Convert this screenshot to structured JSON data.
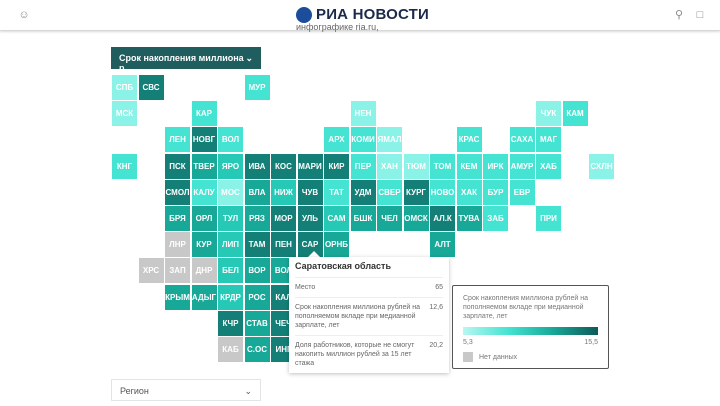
{
  "header": {
    "logo": "РИА НОВОСТИ",
    "subtext": "инфографике ria.ru,"
  },
  "selector": {
    "label": "Срок накопления миллиона р..."
  },
  "tiles": [
    {
      "label": "СПБ",
      "level": 0
    },
    {
      "label": "СВС",
      "level": 4
    },
    {
      "label": "МУР",
      "level": 1
    },
    {
      "label": "МСК",
      "level": 0
    },
    {
      "label": "КАР",
      "level": 1
    },
    {
      "label": "НЕН",
      "level": 0
    },
    {
      "label": "ЧУК",
      "level": 0
    },
    {
      "label": "КАМ",
      "level": 1
    },
    {
      "label": "ЛЕН",
      "level": 1
    },
    {
      "label": "НОВГ",
      "level": 4
    },
    {
      "label": "ВОЛ",
      "level": 1
    },
    {
      "label": "АРХ",
      "level": 1
    },
    {
      "label": "КОМИ",
      "level": 1
    },
    {
      "label": "ЯМАЛ",
      "level": 0
    },
    {
      "label": "КРАС",
      "level": 1
    },
    {
      "label": "САХА",
      "level": 1
    },
    {
      "label": "МАГ",
      "level": 1
    },
    {
      "label": "КНГ",
      "level": 1
    },
    {
      "label": "ПСК",
      "level": 4
    },
    {
      "label": "ТВЕР",
      "level": 3
    },
    {
      "label": "ЯРО",
      "level": 2
    },
    {
      "label": "ИВА",
      "level": 4
    },
    {
      "label": "КОС",
      "level": 4
    },
    {
      "label": "МАРИ",
      "level": 4
    },
    {
      "label": "КИР",
      "level": 4
    },
    {
      "label": "ПЕР",
      "level": 1
    },
    {
      "label": "ХАН",
      "level": 0
    },
    {
      "label": "ТЮМ",
      "level": 0
    },
    {
      "label": "ТОМ",
      "level": 1
    },
    {
      "label": "КЕМ",
      "level": 1
    },
    {
      "label": "ИРК",
      "level": 1
    },
    {
      "label": "АМУР",
      "level": 1
    },
    {
      "label": "ХАБ",
      "level": 1
    },
    {
      "label": "СХЛН",
      "level": 0
    },
    {
      "label": "СМОЛ",
      "level": 4
    },
    {
      "label": "КАЛУ",
      "level": 1
    },
    {
      "label": "МОС",
      "level": 0
    },
    {
      "label": "ВЛА",
      "level": 3
    },
    {
      "label": "НИЖ",
      "level": 2
    },
    {
      "label": "ЧУВ",
      "level": 4
    },
    {
      "label": "ТАТ",
      "level": 1
    },
    {
      "label": "УДМ",
      "level": 4
    },
    {
      "label": "СВЕР",
      "level": 1
    },
    {
      "label": "КУРГ",
      "level": 4
    },
    {
      "label": "НОВО",
      "level": 1
    },
    {
      "label": "ХАК",
      "level": 1
    },
    {
      "label": "БУР",
      "level": 1
    },
    {
      "label": "ЕВР",
      "level": 1
    },
    {
      "label": "БРЯ",
      "level": 3
    },
    {
      "label": "ОРЛ",
      "level": 3
    },
    {
      "label": "ТУЛ",
      "level": 2
    },
    {
      "label": "РЯЗ",
      "level": 3
    },
    {
      "label": "МОР",
      "level": 4
    },
    {
      "label": "УЛЬ",
      "level": 4
    },
    {
      "label": "САМ",
      "level": 2
    },
    {
      "label": "БШК",
      "level": 3
    },
    {
      "label": "ЧЕЛ",
      "level": 3
    },
    {
      "label": "ОМСК",
      "level": 3
    },
    {
      "label": "АЛ.К",
      "level": 4
    },
    {
      "label": "ТУВА",
      "level": 3
    },
    {
      "label": "ЗАБ",
      "level": 1
    },
    {
      "label": "ПРИ",
      "level": 1
    },
    {
      "label": "ЛНР",
      "level": -1
    },
    {
      "label": "КУР",
      "level": 3
    },
    {
      "label": "ЛИП",
      "level": 2
    },
    {
      "label": "ТАМ",
      "level": 4
    },
    {
      "label": "ПЕН",
      "level": 4
    },
    {
      "label": "САР",
      "level": 4
    },
    {
      "label": "ОРНБ",
      "level": 3
    },
    {
      "label": "АЛТ",
      "level": 3
    },
    {
      "label": "ХРС",
      "level": -1
    },
    {
      "label": "ЗАП",
      "level": -1
    },
    {
      "label": "ДНР",
      "level": -1
    },
    {
      "label": "БЕЛ",
      "level": 2
    },
    {
      "label": "ВОР",
      "level": 3
    },
    {
      "label": "ВОЛ",
      "level": 3
    },
    {
      "label": "КРЫМ",
      "level": 3
    },
    {
      "label": "АДЫГ",
      "level": 3
    },
    {
      "label": "КРДР",
      "level": 2
    },
    {
      "label": "РОС",
      "level": 3
    },
    {
      "label": "КАЛ",
      "level": 4
    },
    {
      "label": "КЧР",
      "level": 4
    },
    {
      "label": "СТАВ",
      "level": 3
    },
    {
      "label": "ЧЕЧ",
      "level": 4
    },
    {
      "label": "КАБ",
      "level": -1
    },
    {
      "label": "С.ОС",
      "level": 3
    },
    {
      "label": "ИНГ",
      "level": 4
    }
  ],
  "colors": {
    "-1": "#c8c8c8",
    "0": "#8af2e6",
    "1": "#45e3d2",
    "2": "#25c9b5",
    "3": "#18a898",
    "4": "#137f76"
  },
  "tooltip": {
    "title": "Саратовская область",
    "rows": [
      {
        "label": "Место",
        "value": "65"
      },
      {
        "label": "Срок накопления миллиона рублей на пополняемом вкладе при медианной зарплате, лет",
        "value": "12,6"
      },
      {
        "label": "Доля работников, которые не смогут накопить миллион рублей за 15 лет стажа",
        "value": "20,2"
      }
    ]
  },
  "legend": {
    "title": "Срок накопления миллиона рублей на пополняемом вкладе при медианной зарплате, лет",
    "min": "5,3",
    "max": "15,5",
    "nodata": "Нет данных"
  },
  "region": {
    "label": "Регион"
  }
}
